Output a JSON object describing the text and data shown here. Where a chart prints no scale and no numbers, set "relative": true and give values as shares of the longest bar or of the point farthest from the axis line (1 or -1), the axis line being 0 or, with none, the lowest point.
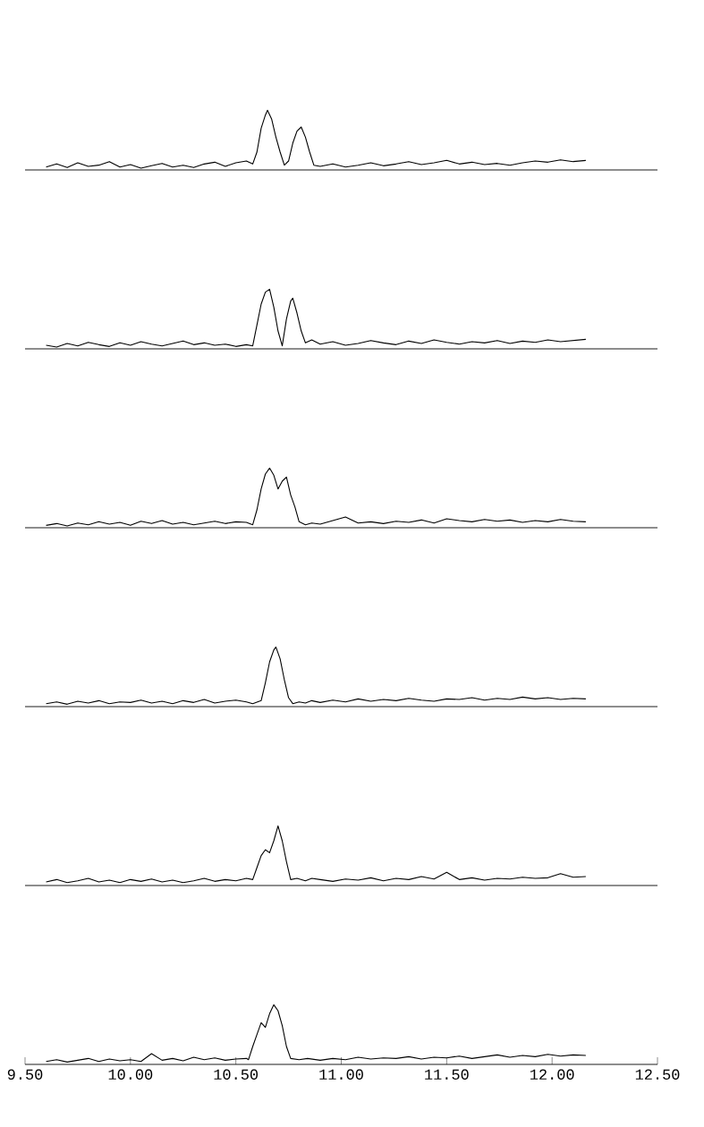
{
  "chart_data": [
    {
      "type": "line",
      "relative": true,
      "color": "#000000",
      "xlim": [
        9.5,
        12.5
      ],
      "tick_labels": false,
      "x": [
        9.6,
        9.65,
        9.7,
        9.75,
        9.8,
        9.85,
        9.9,
        9.95,
        10.0,
        10.05,
        10.1,
        10.15,
        10.2,
        10.25,
        10.3,
        10.35,
        10.4,
        10.45,
        10.5,
        10.55,
        10.58,
        10.6,
        10.62,
        10.64,
        10.65,
        10.67,
        10.69,
        10.71,
        10.73,
        10.75,
        10.77,
        10.79,
        10.81,
        10.83,
        10.85,
        10.87,
        10.9,
        10.96,
        11.02,
        11.08,
        11.14,
        11.2,
        11.26,
        11.32,
        11.38,
        11.44,
        11.5,
        11.56,
        11.62,
        11.68,
        11.74,
        11.8,
        11.86,
        11.92,
        11.98,
        12.04,
        12.1,
        12.16
      ],
      "values": [
        0.05,
        0.1,
        0.04,
        0.12,
        0.06,
        0.08,
        0.14,
        0.05,
        0.09,
        0.03,
        0.07,
        0.11,
        0.05,
        0.08,
        0.04,
        0.1,
        0.13,
        0.06,
        0.12,
        0.15,
        0.1,
        0.3,
        0.7,
        0.92,
        1.0,
        0.85,
        0.55,
        0.3,
        0.08,
        0.15,
        0.45,
        0.65,
        0.72,
        0.55,
        0.3,
        0.08,
        0.06,
        0.1,
        0.05,
        0.08,
        0.12,
        0.07,
        0.1,
        0.14,
        0.09,
        0.12,
        0.16,
        0.1,
        0.13,
        0.09,
        0.11,
        0.08,
        0.12,
        0.15,
        0.13,
        0.17,
        0.14,
        0.16
      ]
    },
    {
      "type": "line",
      "relative": true,
      "color": "#000000",
      "xlim": [
        9.5,
        12.5
      ],
      "tick_labels": false,
      "x": [
        9.6,
        9.65,
        9.7,
        9.75,
        9.8,
        9.85,
        9.9,
        9.95,
        10.0,
        10.05,
        10.1,
        10.15,
        10.2,
        10.25,
        10.3,
        10.35,
        10.4,
        10.45,
        10.5,
        10.55,
        10.58,
        10.6,
        10.62,
        10.64,
        10.66,
        10.68,
        10.7,
        10.72,
        10.74,
        10.76,
        10.77,
        10.79,
        10.81,
        10.83,
        10.86,
        10.9,
        10.96,
        11.02,
        11.08,
        11.14,
        11.2,
        11.26,
        11.32,
        11.38,
        11.44,
        11.5,
        11.56,
        11.62,
        11.68,
        11.74,
        11.8,
        11.86,
        11.92,
        11.98,
        12.04,
        12.1,
        12.16
      ],
      "values": [
        0.06,
        0.03,
        0.09,
        0.05,
        0.11,
        0.07,
        0.04,
        0.1,
        0.06,
        0.12,
        0.08,
        0.05,
        0.09,
        0.13,
        0.07,
        0.1,
        0.06,
        0.08,
        0.04,
        0.07,
        0.05,
        0.4,
        0.75,
        0.95,
        1.0,
        0.7,
        0.3,
        0.05,
        0.5,
        0.8,
        0.85,
        0.6,
        0.3,
        0.1,
        0.15,
        0.08,
        0.12,
        0.06,
        0.09,
        0.14,
        0.1,
        0.07,
        0.13,
        0.09,
        0.15,
        0.11,
        0.08,
        0.12,
        0.1,
        0.14,
        0.09,
        0.13,
        0.11,
        0.15,
        0.12,
        0.14,
        0.16
      ]
    },
    {
      "type": "line",
      "relative": true,
      "color": "#000000",
      "xlim": [
        9.5,
        12.5
      ],
      "tick_labels": false,
      "x": [
        9.6,
        9.65,
        9.7,
        9.75,
        9.8,
        9.85,
        9.9,
        9.95,
        10.0,
        10.05,
        10.1,
        10.15,
        10.2,
        10.25,
        10.3,
        10.35,
        10.4,
        10.45,
        10.5,
        10.55,
        10.58,
        10.6,
        10.62,
        10.64,
        10.66,
        10.68,
        10.7,
        10.72,
        10.74,
        10.76,
        10.78,
        10.8,
        10.83,
        10.86,
        10.9,
        10.96,
        11.02,
        11.08,
        11.14,
        11.2,
        11.26,
        11.32,
        11.38,
        11.44,
        11.5,
        11.56,
        11.62,
        11.68,
        11.74,
        11.8,
        11.86,
        11.92,
        11.98,
        12.04,
        12.1,
        12.16
      ],
      "values": [
        0.04,
        0.07,
        0.03,
        0.08,
        0.05,
        0.1,
        0.06,
        0.09,
        0.04,
        0.11,
        0.07,
        0.12,
        0.06,
        0.09,
        0.05,
        0.08,
        0.11,
        0.07,
        0.1,
        0.09,
        0.05,
        0.3,
        0.65,
        0.9,
        1.0,
        0.88,
        0.65,
        0.78,
        0.85,
        0.55,
        0.35,
        0.1,
        0.05,
        0.08,
        0.06,
        0.12,
        0.18,
        0.08,
        0.1,
        0.07,
        0.11,
        0.09,
        0.13,
        0.08,
        0.15,
        0.12,
        0.1,
        0.14,
        0.11,
        0.13,
        0.09,
        0.12,
        0.1,
        0.14,
        0.11,
        0.1
      ]
    },
    {
      "type": "line",
      "relative": true,
      "color": "#000000",
      "xlim": [
        9.5,
        12.5
      ],
      "tick_labels": false,
      "x": [
        9.6,
        9.65,
        9.7,
        9.75,
        9.8,
        9.85,
        9.9,
        9.95,
        10.0,
        10.05,
        10.1,
        10.15,
        10.2,
        10.25,
        10.3,
        10.35,
        10.4,
        10.45,
        10.5,
        10.55,
        10.58,
        10.62,
        10.64,
        10.66,
        10.68,
        10.69,
        10.71,
        10.73,
        10.75,
        10.77,
        10.8,
        10.83,
        10.86,
        10.9,
        10.96,
        11.02,
        11.08,
        11.14,
        11.2,
        11.26,
        11.32,
        11.38,
        11.44,
        11.5,
        11.56,
        11.62,
        11.68,
        11.74,
        11.8,
        11.86,
        11.92,
        11.98,
        12.04,
        12.1,
        12.16
      ],
      "values": [
        0.05,
        0.08,
        0.04,
        0.09,
        0.06,
        0.1,
        0.05,
        0.08,
        0.07,
        0.11,
        0.06,
        0.09,
        0.05,
        0.1,
        0.07,
        0.12,
        0.06,
        0.09,
        0.11,
        0.08,
        0.05,
        0.1,
        0.4,
        0.75,
        0.95,
        1.0,
        0.8,
        0.45,
        0.15,
        0.05,
        0.08,
        0.06,
        0.1,
        0.07,
        0.11,
        0.08,
        0.13,
        0.09,
        0.12,
        0.1,
        0.14,
        0.11,
        0.09,
        0.13,
        0.12,
        0.15,
        0.11,
        0.14,
        0.12,
        0.16,
        0.13,
        0.15,
        0.12,
        0.14,
        0.13
      ]
    },
    {
      "type": "line",
      "relative": true,
      "color": "#000000",
      "xlim": [
        9.5,
        12.5
      ],
      "tick_labels": false,
      "x": [
        9.6,
        9.65,
        9.7,
        9.75,
        9.8,
        9.85,
        9.9,
        9.95,
        10.0,
        10.05,
        10.1,
        10.15,
        10.2,
        10.25,
        10.3,
        10.35,
        10.4,
        10.45,
        10.5,
        10.55,
        10.58,
        10.6,
        10.62,
        10.64,
        10.66,
        10.68,
        10.7,
        10.72,
        10.74,
        10.76,
        10.79,
        10.83,
        10.86,
        10.9,
        10.96,
        11.02,
        11.08,
        11.14,
        11.2,
        11.26,
        11.32,
        11.38,
        11.44,
        11.5,
        11.56,
        11.62,
        11.68,
        11.74,
        11.8,
        11.86,
        11.92,
        11.98,
        12.04,
        12.1,
        12.16
      ],
      "values": [
        0.06,
        0.1,
        0.05,
        0.08,
        0.12,
        0.06,
        0.09,
        0.05,
        0.1,
        0.07,
        0.11,
        0.06,
        0.09,
        0.05,
        0.08,
        0.12,
        0.07,
        0.1,
        0.08,
        0.12,
        0.1,
        0.3,
        0.5,
        0.6,
        0.55,
        0.75,
        1.0,
        0.75,
        0.4,
        0.1,
        0.12,
        0.08,
        0.12,
        0.1,
        0.07,
        0.11,
        0.09,
        0.13,
        0.08,
        0.12,
        0.1,
        0.15,
        0.11,
        0.22,
        0.1,
        0.13,
        0.09,
        0.12,
        0.11,
        0.14,
        0.12,
        0.13,
        0.2,
        0.14,
        0.15
      ]
    },
    {
      "type": "line",
      "relative": true,
      "color": "#000000",
      "xlim": [
        9.5,
        12.5
      ],
      "tick_labels": "x",
      "xticks": [
        {
          "value": 9.5,
          "label": "9.50"
        },
        {
          "value": 10.0,
          "label": "10.00"
        },
        {
          "value": 10.5,
          "label": "10.50"
        },
        {
          "value": 11.0,
          "label": "11.00"
        },
        {
          "value": 11.5,
          "label": "11.50"
        },
        {
          "value": 12.0,
          "label": "12.00"
        },
        {
          "value": 12.5,
          "label": "12.50"
        }
      ],
      "x": [
        9.6,
        9.65,
        9.7,
        9.75,
        9.8,
        9.85,
        9.9,
        9.95,
        10.0,
        10.05,
        10.1,
        10.15,
        10.2,
        10.25,
        10.3,
        10.35,
        10.4,
        10.45,
        10.5,
        10.55,
        10.56,
        10.58,
        10.6,
        10.62,
        10.64,
        10.66,
        10.68,
        10.7,
        10.72,
        10.74,
        10.76,
        10.8,
        10.84,
        10.9,
        10.96,
        11.02,
        11.08,
        11.14,
        11.2,
        11.26,
        11.32,
        11.38,
        11.44,
        11.5,
        11.56,
        11.62,
        11.68,
        11.74,
        11.8,
        11.86,
        11.92,
        11.98,
        12.04,
        12.1,
        12.16
      ],
      "values": [
        0.05,
        0.08,
        0.04,
        0.07,
        0.1,
        0.05,
        0.09,
        0.06,
        0.08,
        0.05,
        0.18,
        0.07,
        0.1,
        0.06,
        0.12,
        0.08,
        0.11,
        0.07,
        0.09,
        0.1,
        0.08,
        0.3,
        0.5,
        0.7,
        0.62,
        0.85,
        1.0,
        0.9,
        0.65,
        0.3,
        0.1,
        0.08,
        0.1,
        0.07,
        0.1,
        0.08,
        0.12,
        0.09,
        0.11,
        0.1,
        0.13,
        0.09,
        0.12,
        0.11,
        0.14,
        0.1,
        0.13,
        0.16,
        0.12,
        0.15,
        0.13,
        0.17,
        0.14,
        0.16,
        0.15
      ]
    }
  ]
}
